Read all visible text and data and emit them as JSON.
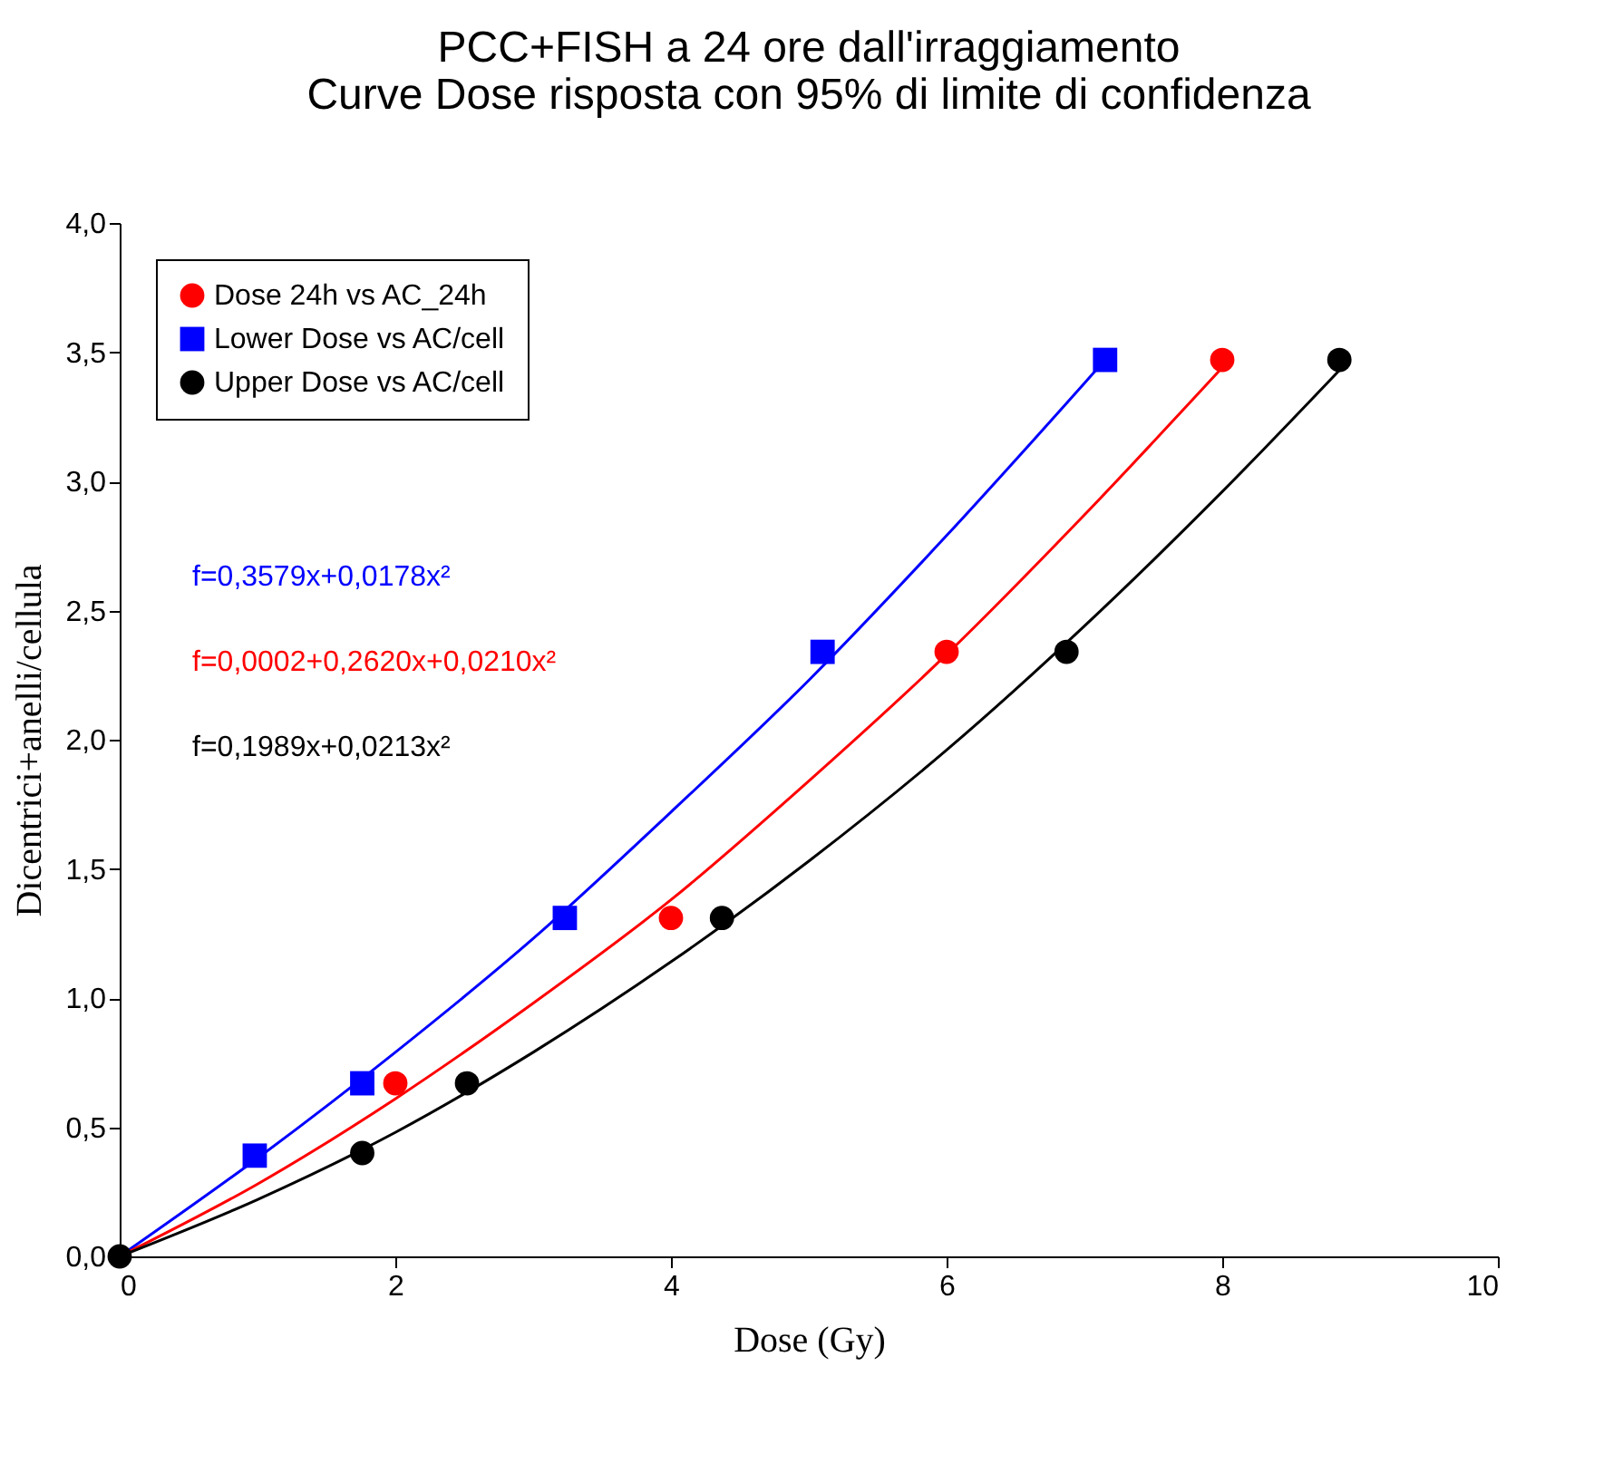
{
  "chart_data": {
    "type": "scatter",
    "title": [
      "PCC+FISH a 24 ore dall'irraggiamento",
      "Curve Dose risposta con 95% di limite di confidenza"
    ],
    "xlabel": "Dose (Gy)",
    "ylabel": "Dicentrici+anelli/cellula",
    "xlim": [
      0,
      10
    ],
    "xticks": [
      0,
      2,
      4,
      6,
      8,
      10
    ],
    "ylim": [
      0,
      4
    ],
    "yticks": [
      {
        "value": 0,
        "label": "0,0"
      },
      {
        "value": 0.5,
        "label": "0,5"
      },
      {
        "value": 1,
        "label": "1,0"
      },
      {
        "value": 1.5,
        "label": "1,5"
      },
      {
        "value": 2,
        "label": "2,0"
      },
      {
        "value": 2.5,
        "label": "2,5"
      },
      {
        "value": 3,
        "label": "3,0"
      },
      {
        "value": 3.5,
        "label": "3,5"
      },
      {
        "value": 4,
        "label": "4,0"
      }
    ],
    "grid": false,
    "legend": "top left",
    "series": [
      {
        "name": "Dose 24h vs AC_24h",
        "marker": "circle",
        "color": "#ff0000",
        "x": [
          2,
          4,
          6,
          8
        ],
        "values": [
          0.67,
          1.31,
          2.34,
          3.47
        ]
      },
      {
        "name": "Lower Dose vs AC/cell",
        "marker": "square",
        "color": "#0000ff",
        "x": [
          0.98,
          1.76,
          3.23,
          5.1,
          7.15
        ],
        "values": [
          0.39,
          0.67,
          1.31,
          2.34,
          3.47
        ]
      },
      {
        "name": "Upper Dose vs AC/cell",
        "marker": "circle",
        "color": "#000000",
        "x": [
          0,
          1.76,
          2.52,
          4.37,
          6.87,
          8.85
        ],
        "values": [
          0,
          0.4,
          0.67,
          1.31,
          2.34,
          3.47
        ]
      },
      {
        "type": "line",
        "marker": "none",
        "line_style": "solid",
        "color": "#0000ff",
        "x": [
          0,
          1,
          2,
          3,
          4,
          5,
          6,
          7,
          7.15
        ],
        "values": [
          0,
          0.38,
          0.79,
          1.23,
          1.72,
          2.23,
          2.79,
          3.38,
          3.47
        ]
      },
      {
        "type": "line",
        "marker": "none",
        "line_style": "solid",
        "color": "#ff0000",
        "x": [
          0,
          1,
          2,
          3,
          4,
          5,
          6,
          7,
          8
        ],
        "values": [
          0,
          0.28,
          0.61,
          0.98,
          1.38,
          1.84,
          2.33,
          2.87,
          3.44
        ]
      },
      {
        "type": "line",
        "marker": "none",
        "line_style": "solid",
        "color": "#000000",
        "x": [
          0,
          1,
          2,
          3,
          4,
          5,
          6,
          7,
          8,
          8.85
        ],
        "values": [
          0,
          0.22,
          0.48,
          0.79,
          1.14,
          1.53,
          1.96,
          2.44,
          2.96,
          3.43
        ]
      }
    ],
    "annotations": [
      "f=0,3579x+0,0178x²",
      "f=0,0002+0,2620x+0,0210x²",
      "f=0,1989x+0,0213x²"
    ]
  }
}
